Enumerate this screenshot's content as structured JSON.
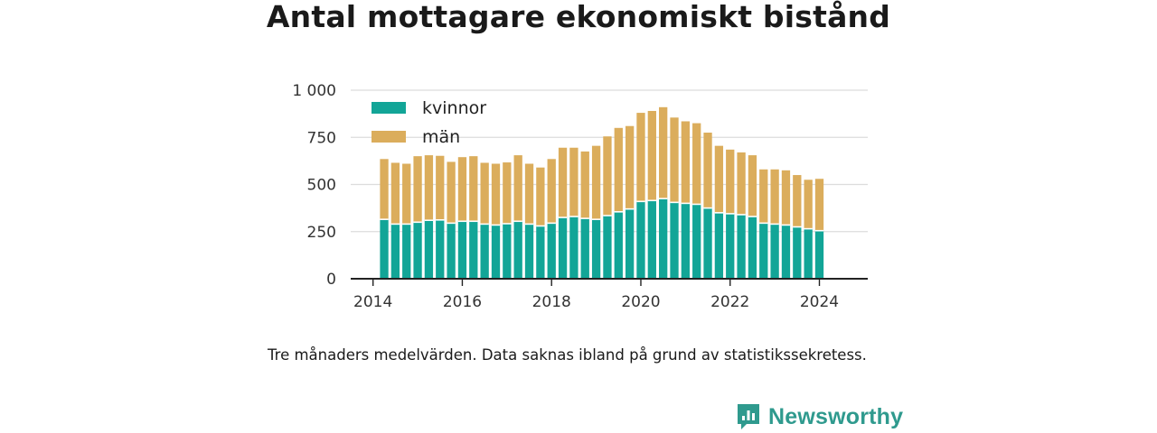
{
  "title": "Antal mottagare ekonomiskt bistånd",
  "footnote": "Tre månaders medelvärden. Data saknas ibland på grund av statistikssekretess.",
  "brand": {
    "name": "Newsworthy",
    "icon": "bar-chart-speech-bubble-icon",
    "color": "#2f9a8e"
  },
  "chart_data": {
    "type": "bar",
    "stacked": true,
    "x_axis": {
      "type": "date",
      "ticks": [
        "2014",
        "2016",
        "2018",
        "2020",
        "2022",
        "2024"
      ],
      "range": [
        "2013-07",
        "2025-02"
      ]
    },
    "y_axis": {
      "ticks": [
        "0",
        "250",
        "500",
        "750",
        "1 000"
      ],
      "range": [
        0,
        1000
      ],
      "grid": true
    },
    "legend": {
      "placement": "top-left"
    },
    "x": [
      "2014-04",
      "2014-07",
      "2014-10",
      "2015-01",
      "2015-04",
      "2015-07",
      "2015-10",
      "2016-01",
      "2016-04",
      "2016-07",
      "2016-10",
      "2017-01",
      "2017-04",
      "2017-07",
      "2017-10",
      "2018-01",
      "2018-04",
      "2018-07",
      "2018-10",
      "2019-01",
      "2019-04",
      "2019-07",
      "2019-10",
      "2020-01",
      "2020-04",
      "2020-07",
      "2020-10",
      "2021-01",
      "2021-04",
      "2021-07",
      "2021-10",
      "2022-01",
      "2022-04",
      "2022-07",
      "2022-10",
      "2023-01",
      "2023-04",
      "2023-07",
      "2023-10",
      "2024-01",
      "2024-04",
      "2024-07"
    ],
    "series": [
      {
        "name": "kvinnor",
        "color": "#12a597",
        "values": [
          315,
          290,
          290,
          300,
          310,
          312,
          295,
          305,
          305,
          290,
          285,
          292,
          305,
          290,
          280,
          295,
          325,
          330,
          320,
          315,
          335,
          355,
          370,
          410,
          415,
          425,
          405,
          400,
          395,
          375,
          350,
          345,
          340,
          330,
          295,
          290,
          285,
          275,
          265,
          255,
          0,
          0
        ]
      },
      {
        "name": "män",
        "color": "#dbad5c",
        "values": [
          320,
          325,
          320,
          350,
          345,
          340,
          325,
          340,
          345,
          325,
          325,
          325,
          350,
          320,
          310,
          340,
          370,
          365,
          355,
          390,
          420,
          445,
          440,
          470,
          475,
          485,
          450,
          435,
          430,
          400,
          355,
          340,
          330,
          325,
          285,
          290,
          290,
          275,
          260,
          275,
          0,
          0
        ]
      }
    ]
  }
}
